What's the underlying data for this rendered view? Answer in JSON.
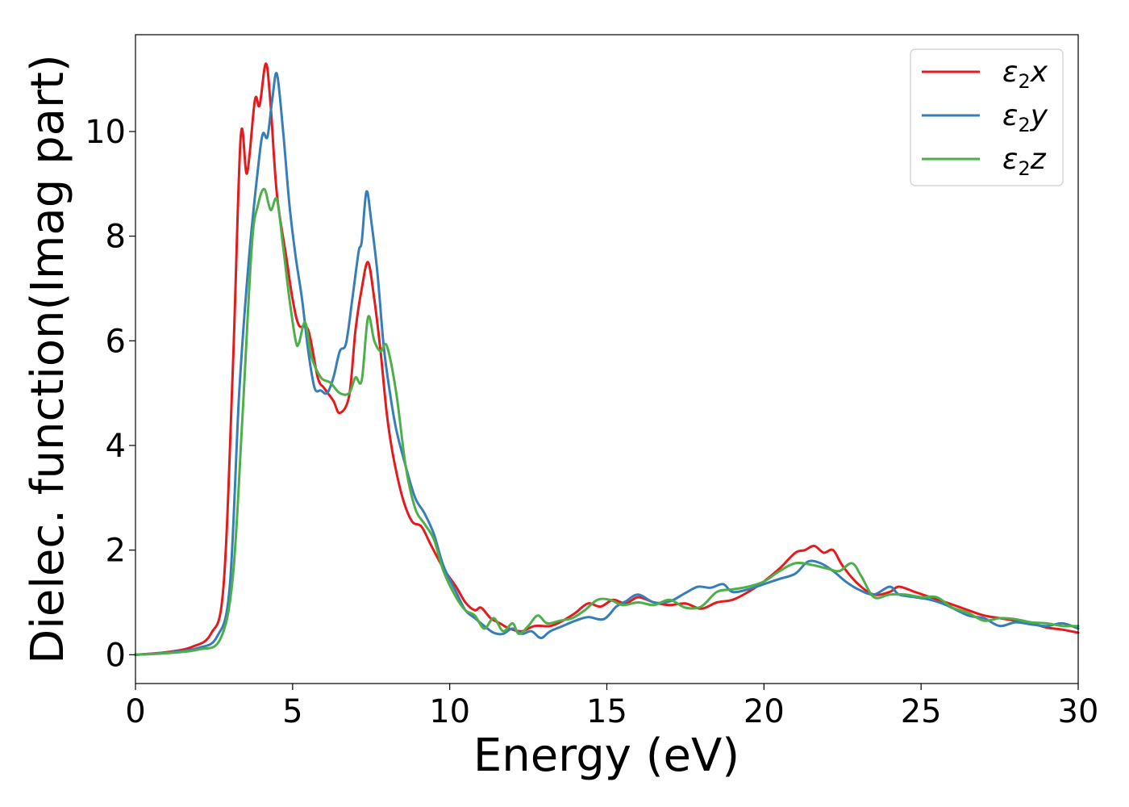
{
  "chart_data": {
    "type": "line",
    "xlabel": "Energy (eV)",
    "ylabel": "Dielec. function(Imag part)",
    "xlim": [
      0,
      30
    ],
    "ylim": [
      -0.55,
      11.85
    ],
    "xticks": [
      0,
      5,
      10,
      15,
      20,
      25,
      30
    ],
    "xtick_labels": [
      "0",
      "5",
      "10",
      "15",
      "20",
      "25",
      "30"
    ],
    "yticks": [
      0,
      2,
      4,
      6,
      8,
      10
    ],
    "ytick_labels": [
      "0",
      "2",
      "4",
      "6",
      "8",
      "10"
    ],
    "grid": false,
    "legend_position": "top-right",
    "series": [
      {
        "name": "ε2x",
        "legend": {
          "symbol": "ε",
          "sub": "2",
          "suffix": "x"
        },
        "color": "#e41a1c",
        "points": [
          [
            0,
            0
          ],
          [
            1,
            0.05
          ],
          [
            1.8,
            0.15
          ],
          [
            2.4,
            0.4
          ],
          [
            2.8,
            1.3
          ],
          [
            3.1,
            5.5
          ],
          [
            3.35,
            9.9
          ],
          [
            3.55,
            9.2
          ],
          [
            3.8,
            10.6
          ],
          [
            3.95,
            10.5
          ],
          [
            4.15,
            11.3
          ],
          [
            4.3,
            10.5
          ],
          [
            4.5,
            8.8
          ],
          [
            4.8,
            7.6
          ],
          [
            5.0,
            6.8
          ],
          [
            5.2,
            6.3
          ],
          [
            5.5,
            6.2
          ],
          [
            5.8,
            5.3
          ],
          [
            6.0,
            5.1
          ],
          [
            6.3,
            4.85
          ],
          [
            6.5,
            4.62
          ],
          [
            6.8,
            4.95
          ],
          [
            7.0,
            6.2
          ],
          [
            7.2,
            7.0
          ],
          [
            7.4,
            7.5
          ],
          [
            7.6,
            6.8
          ],
          [
            7.8,
            5.8
          ],
          [
            8.0,
            4.6
          ],
          [
            8.2,
            3.8
          ],
          [
            8.5,
            3.0
          ],
          [
            8.8,
            2.55
          ],
          [
            9.1,
            2.45
          ],
          [
            9.4,
            2.1
          ],
          [
            9.8,
            1.65
          ],
          [
            10.2,
            1.3
          ],
          [
            10.5,
            1.0
          ],
          [
            10.8,
            0.85
          ],
          [
            11.0,
            0.9
          ],
          [
            11.3,
            0.7
          ],
          [
            11.6,
            0.6
          ],
          [
            11.9,
            0.5
          ],
          [
            12.3,
            0.45
          ],
          [
            12.7,
            0.55
          ],
          [
            13.2,
            0.55
          ],
          [
            13.6,
            0.65
          ],
          [
            14.0,
            0.8
          ],
          [
            14.4,
            0.98
          ],
          [
            14.8,
            0.92
          ],
          [
            15.2,
            1.05
          ],
          [
            15.6,
            0.98
          ],
          [
            16.0,
            1.1
          ],
          [
            16.5,
            1.0
          ],
          [
            17.0,
            0.95
          ],
          [
            17.5,
            0.98
          ],
          [
            18.0,
            0.88
          ],
          [
            18.5,
            1.0
          ],
          [
            19.0,
            1.05
          ],
          [
            19.5,
            1.2
          ],
          [
            20.0,
            1.4
          ],
          [
            20.5,
            1.65
          ],
          [
            21.0,
            1.95
          ],
          [
            21.3,
            2.0
          ],
          [
            21.6,
            2.08
          ],
          [
            21.9,
            1.95
          ],
          [
            22.2,
            2.0
          ],
          [
            22.5,
            1.7
          ],
          [
            23.0,
            1.35
          ],
          [
            23.5,
            1.15
          ],
          [
            24.0,
            1.2
          ],
          [
            24.3,
            1.3
          ],
          [
            24.8,
            1.2
          ],
          [
            25.3,
            1.1
          ],
          [
            25.8,
            1.0
          ],
          [
            26.5,
            0.85
          ],
          [
            27.0,
            0.75
          ],
          [
            27.5,
            0.7
          ],
          [
            28.0,
            0.65
          ],
          [
            28.5,
            0.6
          ],
          [
            29.0,
            0.52
          ],
          [
            29.5,
            0.48
          ],
          [
            30,
            0.42
          ]
        ]
      },
      {
        "name": "ε2y",
        "legend": {
          "symbol": "ε",
          "sub": "2",
          "suffix": "y"
        },
        "color": "#377eb8",
        "points": [
          [
            0,
            0
          ],
          [
            1,
            0.04
          ],
          [
            2.0,
            0.13
          ],
          [
            2.6,
            0.35
          ],
          [
            3.0,
            1.3
          ],
          [
            3.3,
            5.0
          ],
          [
            3.6,
            7.5
          ],
          [
            3.9,
            9.3
          ],
          [
            4.05,
            9.95
          ],
          [
            4.2,
            9.9
          ],
          [
            4.35,
            10.6
          ],
          [
            4.5,
            11.1
          ],
          [
            4.7,
            10.0
          ],
          [
            4.9,
            8.6
          ],
          [
            5.1,
            7.6
          ],
          [
            5.3,
            6.8
          ],
          [
            5.5,
            5.8
          ],
          [
            5.7,
            5.1
          ],
          [
            5.9,
            5.05
          ],
          [
            6.1,
            5.0
          ],
          [
            6.3,
            5.3
          ],
          [
            6.5,
            5.8
          ],
          [
            6.7,
            5.95
          ],
          [
            6.9,
            6.8
          ],
          [
            7.1,
            7.7
          ],
          [
            7.2,
            7.9
          ],
          [
            7.35,
            8.85
          ],
          [
            7.5,
            8.3
          ],
          [
            7.7,
            7.3
          ],
          [
            7.9,
            5.9
          ],
          [
            8.1,
            5.0
          ],
          [
            8.3,
            4.3
          ],
          [
            8.6,
            3.6
          ],
          [
            8.9,
            3.0
          ],
          [
            9.2,
            2.7
          ],
          [
            9.5,
            2.3
          ],
          [
            9.8,
            1.7
          ],
          [
            10.2,
            1.2
          ],
          [
            10.5,
            0.85
          ],
          [
            10.8,
            0.7
          ],
          [
            11.1,
            0.55
          ],
          [
            11.4,
            0.42
          ],
          [
            11.7,
            0.4
          ],
          [
            12.0,
            0.5
          ],
          [
            12.3,
            0.4
          ],
          [
            12.6,
            0.45
          ],
          [
            12.9,
            0.32
          ],
          [
            13.2,
            0.45
          ],
          [
            13.6,
            0.55
          ],
          [
            14.0,
            0.65
          ],
          [
            14.4,
            0.72
          ],
          [
            14.9,
            0.68
          ],
          [
            15.3,
            0.92
          ],
          [
            15.6,
            1.02
          ],
          [
            16.0,
            1.15
          ],
          [
            16.5,
            1.0
          ],
          [
            17.0,
            1.02
          ],
          [
            17.5,
            1.18
          ],
          [
            17.9,
            1.3
          ],
          [
            18.3,
            1.28
          ],
          [
            18.7,
            1.35
          ],
          [
            19.0,
            1.2
          ],
          [
            19.5,
            1.25
          ],
          [
            20.0,
            1.35
          ],
          [
            20.5,
            1.45
          ],
          [
            21.0,
            1.55
          ],
          [
            21.4,
            1.78
          ],
          [
            21.8,
            1.75
          ],
          [
            22.2,
            1.6
          ],
          [
            22.6,
            1.4
          ],
          [
            23.0,
            1.25
          ],
          [
            23.5,
            1.15
          ],
          [
            24.0,
            1.3
          ],
          [
            24.3,
            1.15
          ],
          [
            24.8,
            1.1
          ],
          [
            25.3,
            1.05
          ],
          [
            25.8,
            0.95
          ],
          [
            26.5,
            0.75
          ],
          [
            27.0,
            0.7
          ],
          [
            27.5,
            0.55
          ],
          [
            28.0,
            0.62
          ],
          [
            28.5,
            0.58
          ],
          [
            29.0,
            0.55
          ],
          [
            29.5,
            0.6
          ],
          [
            30,
            0.5
          ]
        ]
      },
      {
        "name": "ε2z",
        "legend": {
          "symbol": "ε",
          "sub": "2",
          "suffix": "z"
        },
        "color": "#4daf4a",
        "points": [
          [
            0,
            0
          ],
          [
            1,
            0.03
          ],
          [
            2.0,
            0.1
          ],
          [
            2.7,
            0.3
          ],
          [
            3.1,
            1.5
          ],
          [
            3.4,
            4.5
          ],
          [
            3.7,
            7.8
          ],
          [
            3.9,
            8.6
          ],
          [
            4.1,
            8.9
          ],
          [
            4.3,
            8.5
          ],
          [
            4.5,
            8.7
          ],
          [
            4.7,
            7.8
          ],
          [
            4.9,
            6.8
          ],
          [
            5.1,
            6.0
          ],
          [
            5.2,
            5.95
          ],
          [
            5.4,
            6.35
          ],
          [
            5.6,
            5.7
          ],
          [
            5.9,
            5.3
          ],
          [
            6.2,
            5.2
          ],
          [
            6.5,
            5.0
          ],
          [
            6.8,
            5.0
          ],
          [
            7.0,
            5.3
          ],
          [
            7.2,
            5.25
          ],
          [
            7.4,
            6.45
          ],
          [
            7.6,
            6.0
          ],
          [
            7.8,
            5.8
          ],
          [
            8.0,
            5.9
          ],
          [
            8.3,
            5.0
          ],
          [
            8.6,
            3.6
          ],
          [
            8.9,
            2.8
          ],
          [
            9.2,
            2.5
          ],
          [
            9.5,
            2.2
          ],
          [
            9.8,
            1.6
          ],
          [
            10.2,
            1.1
          ],
          [
            10.5,
            0.85
          ],
          [
            10.8,
            0.75
          ],
          [
            11.1,
            0.5
          ],
          [
            11.4,
            0.7
          ],
          [
            11.7,
            0.45
          ],
          [
            12.0,
            0.6
          ],
          [
            12.2,
            0.4
          ],
          [
            12.5,
            0.55
          ],
          [
            12.8,
            0.75
          ],
          [
            13.1,
            0.6
          ],
          [
            13.5,
            0.65
          ],
          [
            13.9,
            0.7
          ],
          [
            14.3,
            0.85
          ],
          [
            14.7,
            1.05
          ],
          [
            15.1,
            1.05
          ],
          [
            15.5,
            0.95
          ],
          [
            16.0,
            1.0
          ],
          [
            16.5,
            0.95
          ],
          [
            17.0,
            1.05
          ],
          [
            17.5,
            0.9
          ],
          [
            18.0,
            0.92
          ],
          [
            18.5,
            1.2
          ],
          [
            19.0,
            1.25
          ],
          [
            19.5,
            1.3
          ],
          [
            20.0,
            1.4
          ],
          [
            20.5,
            1.6
          ],
          [
            21.0,
            1.75
          ],
          [
            21.5,
            1.72
          ],
          [
            22.0,
            1.65
          ],
          [
            22.4,
            1.6
          ],
          [
            22.8,
            1.75
          ],
          [
            23.1,
            1.5
          ],
          [
            23.5,
            1.1
          ],
          [
            24.0,
            1.15
          ],
          [
            24.5,
            1.15
          ],
          [
            25.0,
            1.1
          ],
          [
            25.5,
            1.1
          ],
          [
            26.0,
            0.9
          ],
          [
            26.5,
            0.8
          ],
          [
            27.0,
            0.65
          ],
          [
            27.5,
            0.7
          ],
          [
            28.0,
            0.68
          ],
          [
            28.5,
            0.62
          ],
          [
            29.0,
            0.6
          ],
          [
            29.5,
            0.55
          ],
          [
            30,
            0.55
          ]
        ]
      }
    ]
  }
}
